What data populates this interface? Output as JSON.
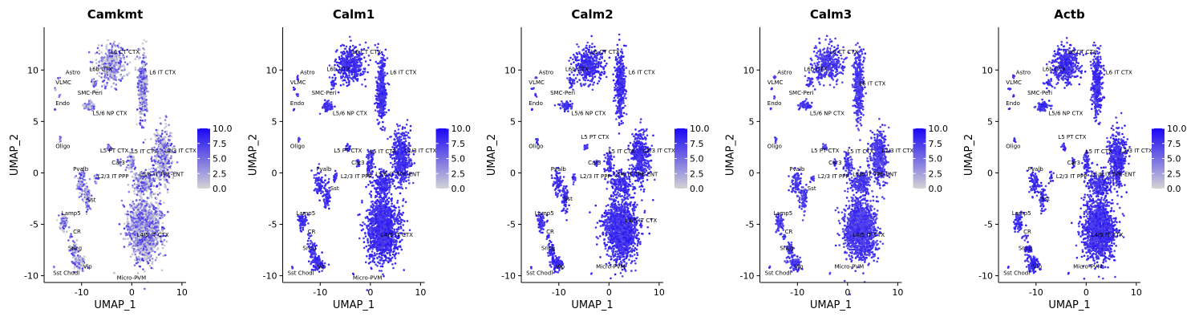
{
  "figure": {
    "layout": "5 feature plots in one row, shared axes"
  },
  "chart_data": [
    {
      "type": "scatter",
      "title": "Camkmt",
      "xlabel": "UMAP_1",
      "ylabel": "UMAP_2",
      "xlim": [
        -17,
        10.5
      ],
      "ylim": [
        -10.5,
        14
      ],
      "xticks": [
        -10,
        0,
        10
      ],
      "yticks": [
        -10,
        -5,
        0,
        5,
        10
      ],
      "grid": false,
      "legend": {
        "position": "right",
        "ticks": [
          "10.0",
          "7.5",
          "5.0",
          "2.5",
          "0.0"
        ],
        "range": [
          0,
          10
        ]
      },
      "color_scale": {
        "low": "#d4d4d4",
        "high": "#1a06f5"
      },
      "expression_level": 0.3,
      "point_style": "speckled"
    },
    {
      "type": "scatter",
      "title": "Calm1",
      "xlabel": "UMAP_1",
      "ylabel": "UMAP_2",
      "xlim": [
        -17,
        10.5
      ],
      "ylim": [
        -10.5,
        14
      ],
      "xticks": [
        -10,
        0,
        10
      ],
      "yticks": [
        -10,
        -5,
        0,
        5,
        10
      ],
      "grid": false,
      "legend": {
        "position": "right",
        "ticks": [
          "10.0",
          "7.5",
          "5.0",
          "2.5",
          "0.0"
        ],
        "range": [
          0,
          10
        ]
      },
      "color_scale": {
        "low": "#d4d4d4",
        "high": "#1a06f5"
      },
      "expression_level": 0.8,
      "point_style": "solid"
    },
    {
      "type": "scatter",
      "title": "Calm2",
      "xlabel": "UMAP_1",
      "ylabel": "UMAP_2",
      "xlim": [
        -17,
        10.5
      ],
      "ylim": [
        -10.5,
        14
      ],
      "xticks": [
        -10,
        0,
        10
      ],
      "yticks": [
        -10,
        -5,
        0,
        5,
        10
      ],
      "grid": false,
      "legend": {
        "position": "right",
        "ticks": [
          "10.0",
          "7.5",
          "5.0",
          "2.5",
          "0.0"
        ],
        "range": [
          0,
          10
        ]
      },
      "color_scale": {
        "low": "#d4d4d4",
        "high": "#1a06f5"
      },
      "expression_level": 0.8,
      "point_style": "solid"
    },
    {
      "type": "scatter",
      "title": "Calm3",
      "xlabel": "UMAP_1",
      "ylabel": "UMAP_2",
      "xlim": [
        -17,
        10.5
      ],
      "ylim": [
        -10.5,
        14
      ],
      "xticks": [
        -10,
        0,
        10
      ],
      "yticks": [
        -10,
        -5,
        0,
        5,
        10
      ],
      "grid": false,
      "legend": {
        "position": "right",
        "ticks": [
          "10.0",
          "7.5",
          "5.0",
          "2.5",
          "0.0"
        ],
        "range": [
          0,
          10
        ]
      },
      "color_scale": {
        "low": "#d4d4d4",
        "high": "#1a06f5"
      },
      "expression_level": 0.75,
      "point_style": "solid"
    },
    {
      "type": "scatter",
      "title": "Actb",
      "xlabel": "UMAP_1",
      "ylabel": "UMAP_2",
      "xlim": [
        -17,
        10.5
      ],
      "ylim": [
        -10.5,
        14
      ],
      "xticks": [
        -10,
        0,
        10
      ],
      "yticks": [
        -10,
        -5,
        0,
        5,
        10
      ],
      "grid": false,
      "legend": {
        "position": "right",
        "ticks": [
          "10.0",
          "7.5",
          "5.0",
          "2.5",
          "0.0"
        ],
        "range": [
          0,
          10
        ]
      },
      "color_scale": {
        "low": "#d4d4d4",
        "high": "#1a06f5"
      },
      "expression_level": 0.8,
      "point_style": "solid"
    }
  ],
  "clusters": [
    {
      "name": "L6 CT CTX",
      "x": -4,
      "y": 10.5,
      "sx": 2.6,
      "sy": 1.6,
      "n": 380
    },
    {
      "name": "L6b CTX",
      "x": -7.5,
      "y": 8.8,
      "sx": 0.6,
      "sy": 0.5,
      "n": 25
    },
    {
      "name": "L6 IT CTX",
      "x": 2.2,
      "y": 8.5,
      "sx": 0.9,
      "sy": 3,
      "n": 380
    },
    {
      "name": "L5/6 NP CTX",
      "x": -8.5,
      "y": 6.5,
      "sx": 1.2,
      "sy": 0.4,
      "n": 70
    },
    {
      "name": "Astro",
      "x": -14.5,
      "y": 9.3,
      "sx": 0.2,
      "sy": 0.2,
      "n": 5
    },
    {
      "name": "VLMC",
      "x": -15.2,
      "y": 8.2,
      "sx": 0.2,
      "sy": 0.2,
      "n": 4
    },
    {
      "name": "SMC-Peri",
      "x": -14.5,
      "y": 7.5,
      "sx": 0.2,
      "sy": 0.2,
      "n": 4
    },
    {
      "name": "Endo",
      "x": -15.3,
      "y": 6.2,
      "sx": 0.1,
      "sy": 0.1,
      "n": 3
    },
    {
      "name": "Oligo",
      "x": -14.3,
      "y": 3.2,
      "sx": 0.2,
      "sy": 0.3,
      "n": 8
    },
    {
      "name": "L5 PT CTX",
      "x": -4.5,
      "y": 2.5,
      "sx": 0.5,
      "sy": 0.3,
      "n": 16
    },
    {
      "name": "Car3",
      "x": -2.5,
      "y": 1.0,
      "sx": 0.3,
      "sy": 0.5,
      "n": 12
    },
    {
      "name": "L5 IT CTX",
      "x": 0,
      "y": 1.0,
      "sx": 0.7,
      "sy": 1.1,
      "n": 70
    },
    {
      "name": "L2/3 IT CTX",
      "x": 6.2,
      "y": 1.5,
      "sx": 1.6,
      "sy": 2.4,
      "n": 420
    },
    {
      "name": "L5/6 IT TPE-ENT",
      "x": 2.5,
      "y": -1.0,
      "sx": 2,
      "sy": 1.1,
      "n": 200
    },
    {
      "name": "L4/5 IT CTX",
      "x": 2.5,
      "y": -5.5,
      "sx": 2.9,
      "sy": 2.7,
      "n": 1300
    },
    {
      "name": "Pvalb",
      "x": -10.2,
      "y": -1.0,
      "sx": 0.9,
      "sy": 1.1,
      "n": 80
    },
    {
      "name": "L2/3 IT PPP",
      "x": -7,
      "y": -0.5,
      "sx": 0.4,
      "sy": 0.6,
      "n": 16
    },
    {
      "name": "Sst",
      "x": -8.8,
      "y": -2.5,
      "sx": 0.7,
      "sy": 1.2,
      "n": 70
    },
    {
      "name": "Lamp5",
      "x": -13.5,
      "y": -4.8,
      "sx": 0.8,
      "sy": 0.8,
      "n": 70
    },
    {
      "name": "CR",
      "x": -12.3,
      "y": -6.2,
      "sx": 0.4,
      "sy": 0.3,
      "n": 8
    },
    {
      "name": "Sncg",
      "x": -11.5,
      "y": -7.5,
      "sx": 0.7,
      "sy": 0.7,
      "n": 45
    },
    {
      "name": "Vip",
      "x": -10.5,
      "y": -8.8,
      "sx": 1.1,
      "sy": 0.7,
      "n": 100
    },
    {
      "name": "Sst Chodl",
      "x": -15.5,
      "y": -9.2,
      "sx": 0.1,
      "sy": 0.1,
      "n": 3
    },
    {
      "name": "Micro-PVM",
      "x": -3.5,
      "y": -9.8,
      "sx": 0.1,
      "sy": 0.1,
      "n": 2
    }
  ],
  "label_sets": [
    [
      {
        "text": "L6 CT CTX",
        "x": -4.2,
        "y": 11.6
      },
      {
        "text": "L6b CTX",
        "x": -8.5,
        "y": 9.9
      },
      {
        "text": "L6 IT CTX",
        "x": 3.5,
        "y": 9.6
      },
      {
        "text": "Astro",
        "x": -13.2,
        "y": 9.6
      },
      {
        "text": "VLMC",
        "x": -15.2,
        "y": 8.6
      },
      {
        "text": "SMC-Peri",
        "x": -10.8,
        "y": 7.6
      },
      {
        "text": "Endo",
        "x": -15.2,
        "y": 6.6
      },
      {
        "text": "L5/6 NP CTX",
        "x": -7.8,
        "y": 5.6
      },
      {
        "text": "Oligo",
        "x": -15.2,
        "y": 2.4
      },
      {
        "text": "L5 PT CTX",
        "x": -6.3,
        "y": 2.0
      },
      {
        "text": "L5 IT CTX",
        "x": -0.1,
        "y": 1.9
      },
      {
        "text": "L2/3 IT CTX",
        "x": 6.5,
        "y": 2.0
      },
      {
        "text": "Car3",
        "x": -4.0,
        "y": 0.8
      },
      {
        "text": "Pvalb",
        "x": -11.7,
        "y": 0.2
      },
      {
        "text": "L2/3 IT PPP",
        "x": -6.8,
        "y": -0.5
      },
      {
        "text": "L5/6 IT TPE-ENT",
        "x": 1.5,
        "y": -0.3
      },
      {
        "text": "Sst",
        "x": -8.9,
        "y": -2.8
      },
      {
        "text": "Lamp5",
        "x": -14.0,
        "y": -4.1
      },
      {
        "text": "CR",
        "x": -11.7,
        "y": -5.9
      },
      {
        "text": "L4/5 IT CTX",
        "x": 1.0,
        "y": -6.2
      },
      {
        "text": "Sncg",
        "x": -12.7,
        "y": -7.5
      },
      {
        "text": "Vip",
        "x": -9.7,
        "y": -9.3
      },
      {
        "text": "Sst Chodl",
        "x": -15.7,
        "y": -9.9
      },
      {
        "text": "Micro-PVM",
        "x": -3.0,
        "y": -10.4
      }
    ],
    [
      {
        "text": "L6 CT CTX",
        "x": -3.6,
        "y": 11.6
      },
      {
        "text": "L6b CTX",
        "x": -8.7,
        "y": 9.9
      },
      {
        "text": "L6 IT CTX",
        "x": 3.9,
        "y": 9.6
      },
      {
        "text": "Astro",
        "x": -14.0,
        "y": 9.6
      },
      {
        "text": "VLMC",
        "x": -16.0,
        "y": 8.6
      },
      {
        "text": "SMC-Peri",
        "x": -11.7,
        "y": 7.6
      },
      {
        "text": "Endo",
        "x": -16.0,
        "y": 6.6
      },
      {
        "text": "L5/6 NP CTX",
        "x": -7.5,
        "y": 5.6
      },
      {
        "text": "Oligo",
        "x": -16.0,
        "y": 2.4
      },
      {
        "text": "L5 PT CTX",
        "x": -7.3,
        "y": 2.0
      },
      {
        "text": "L5 IT CTX",
        "x": -0.1,
        "y": 1.9
      },
      {
        "text": "L2/3 IT CTX",
        "x": 6.8,
        "y": 2.0
      },
      {
        "text": "Car3",
        "x": -3.8,
        "y": 0.8
      },
      {
        "text": "Pvalb",
        "x": -10.8,
        "y": 0.2
      },
      {
        "text": "L2/3 IT PPP",
        "x": -5.9,
        "y": -0.5
      },
      {
        "text": "L5/6 IT TPE-ENT",
        "x": 1.0,
        "y": -0.3
      },
      {
        "text": "Sst",
        "x": -8.0,
        "y": -1.7
      },
      {
        "text": "Lamp5",
        "x": -14.8,
        "y": -4.1
      },
      {
        "text": "CR",
        "x": -12.5,
        "y": -5.9
      },
      {
        "text": "L4/5 IT CTX",
        "x": 2.1,
        "y": -6.2
      },
      {
        "text": "Sncg",
        "x": -13.5,
        "y": -7.5
      },
      {
        "text": "Vip",
        "x": -10.6,
        "y": -9.3
      },
      {
        "text": "Sst Chodl",
        "x": -16.5,
        "y": -9.9
      },
      {
        "text": "Micro-PVM",
        "x": -3.5,
        "y": -10.4
      }
    ],
    [
      {
        "text": "L6 CT CTX",
        "x": -3.6,
        "y": 11.6
      },
      {
        "text": "L6b CTX",
        "x": -8.7,
        "y": 9.9
      },
      {
        "text": "L6 IT CTX",
        "x": 3.9,
        "y": 9.6
      },
      {
        "text": "Astro",
        "x": -14.0,
        "y": 9.6
      },
      {
        "text": "VLMC",
        "x": -16.0,
        "y": 8.6
      },
      {
        "text": "SMC-Peri",
        "x": -11.7,
        "y": 7.6
      },
      {
        "text": "Endo",
        "x": -16.0,
        "y": 6.6
      },
      {
        "text": "L5/6 NP CTX",
        "x": -7.5,
        "y": 5.6
      },
      {
        "text": "L5 PT CTX",
        "x": -5.6,
        "y": 3.3
      },
      {
        "text": "Oligo",
        "x": -16.0,
        "y": 2.4
      },
      {
        "text": "L5 IT CTX",
        "x": -0.1,
        "y": 1.9
      },
      {
        "text": "L2/3 IT CTX",
        "x": 6.8,
        "y": 2.0
      },
      {
        "text": "Car3",
        "x": -4.2,
        "y": 0.8
      },
      {
        "text": "Pvalb",
        "x": -11.6,
        "y": 0.2
      },
      {
        "text": "L2/3 IT PPP",
        "x": -5.8,
        "y": -0.5
      },
      {
        "text": "L5/6 IT TPE-ENT",
        "x": 0.9,
        "y": -0.3
      },
      {
        "text": "Sst",
        "x": -9.0,
        "y": -2.7
      },
      {
        "text": "Lamp5",
        "x": -14.8,
        "y": -4.1
      },
      {
        "text": "L4/5 IT CTX",
        "x": 3.2,
        "y": -4.8
      },
      {
        "text": "CR",
        "x": -12.5,
        "y": -5.9
      },
      {
        "text": "Sncg",
        "x": -13.5,
        "y": -7.5
      },
      {
        "text": "Vip",
        "x": -10.6,
        "y": -9.3
      },
      {
        "text": "Micro-PVM",
        "x": -2.6,
        "y": -9.3
      },
      {
        "text": "Sst Chodl",
        "x": -16.5,
        "y": -9.9
      }
    ],
    [
      {
        "text": "L6 CT CTX",
        "x": -3.6,
        "y": 11.6
      },
      {
        "text": "L6b CTX",
        "x": -8.7,
        "y": 9.9
      },
      {
        "text": "Astro",
        "x": -14.0,
        "y": 9.6
      },
      {
        "text": "VLMC",
        "x": -16.0,
        "y": 8.6
      },
      {
        "text": "L6 IT CTX",
        "x": 2.3,
        "y": 8.5
      },
      {
        "text": "SMC-Peri",
        "x": -11.7,
        "y": 7.6
      },
      {
        "text": "Endo",
        "x": -16.0,
        "y": 6.6
      },
      {
        "text": "L5/6 NP CTX",
        "x": -7.5,
        "y": 5.6
      },
      {
        "text": "L5 PT CTX",
        "x": -7.3,
        "y": 2.0
      },
      {
        "text": "Oligo",
        "x": -16.0,
        "y": 2.4
      },
      {
        "text": "L5 IT CTX",
        "x": -0.1,
        "y": 1.9
      },
      {
        "text": "L2/3 IT CTX",
        "x": 6.8,
        "y": 2.0
      },
      {
        "text": "Car3",
        "x": -3.8,
        "y": 0.8
      },
      {
        "text": "Pvalb",
        "x": -11.6,
        "y": 0.2
      },
      {
        "text": "L2/3 IT PPP",
        "x": -5.9,
        "y": -0.5
      },
      {
        "text": "L5/6 IT TPE-ENT",
        "x": 1.0,
        "y": -0.3
      },
      {
        "text": "Sst",
        "x": -8.0,
        "y": -1.7
      },
      {
        "text": "Lamp5",
        "x": -14.8,
        "y": -4.1
      },
      {
        "text": "CR",
        "x": -12.5,
        "y": -5.9
      },
      {
        "text": "L4/5 IT CTX",
        "x": 1.0,
        "y": -6.2
      },
      {
        "text": "Sncg",
        "x": -13.5,
        "y": -7.5
      },
      {
        "text": "Vip",
        "x": -10.6,
        "y": -9.3
      },
      {
        "text": "Micro-PVM",
        "x": -2.6,
        "y": -9.3
      },
      {
        "text": "Sst Chodl",
        "x": -16.5,
        "y": -9.9
      }
    ],
    [
      {
        "text": "L6 CT CTX",
        "x": -3.6,
        "y": 11.6
      },
      {
        "text": "L6b CTX",
        "x": -8.7,
        "y": 9.9
      },
      {
        "text": "L6 IT CTX",
        "x": 3.9,
        "y": 9.6
      },
      {
        "text": "Astro",
        "x": -14.0,
        "y": 9.6
      },
      {
        "text": "VLMC",
        "x": -16.0,
        "y": 8.6
      },
      {
        "text": "SMC-Peri",
        "x": -11.7,
        "y": 7.6
      },
      {
        "text": "Endo",
        "x": -16.0,
        "y": 6.6
      },
      {
        "text": "L5/6 NP CTX",
        "x": -7.5,
        "y": 5.6
      },
      {
        "text": "L5 PT CTX",
        "x": -5.6,
        "y": 3.3
      },
      {
        "text": "Oligo",
        "x": -16.0,
        "y": 2.4
      },
      {
        "text": "L5 IT CTX",
        "x": -0.1,
        "y": 1.9
      },
      {
        "text": "L2/3 IT CTX",
        "x": 6.8,
        "y": 2.0
      },
      {
        "text": "Car3",
        "x": -3.8,
        "y": 0.8
      },
      {
        "text": "Pvalb",
        "x": -11.6,
        "y": 0.2
      },
      {
        "text": "L2/3 IT PPP",
        "x": -6.0,
        "y": -0.5
      },
      {
        "text": "L5/6 IT TPE-ENT",
        "x": 1.0,
        "y": -0.3
      },
      {
        "text": "Sst",
        "x": -9.0,
        "y": -2.7
      },
      {
        "text": "Lamp5",
        "x": -14.8,
        "y": -4.1
      },
      {
        "text": "CR",
        "x": -12.5,
        "y": -5.9
      },
      {
        "text": "L4/5 IT CTX",
        "x": 1.0,
        "y": -6.2
      },
      {
        "text": "Sncg",
        "x": -13.5,
        "y": -7.5
      },
      {
        "text": "Vip",
        "x": -10.6,
        "y": -9.3
      },
      {
        "text": "Micro-PVM",
        "x": -2.6,
        "y": -9.3
      },
      {
        "text": "Sst Chodl",
        "x": -16.5,
        "y": -9.9
      }
    ]
  ]
}
